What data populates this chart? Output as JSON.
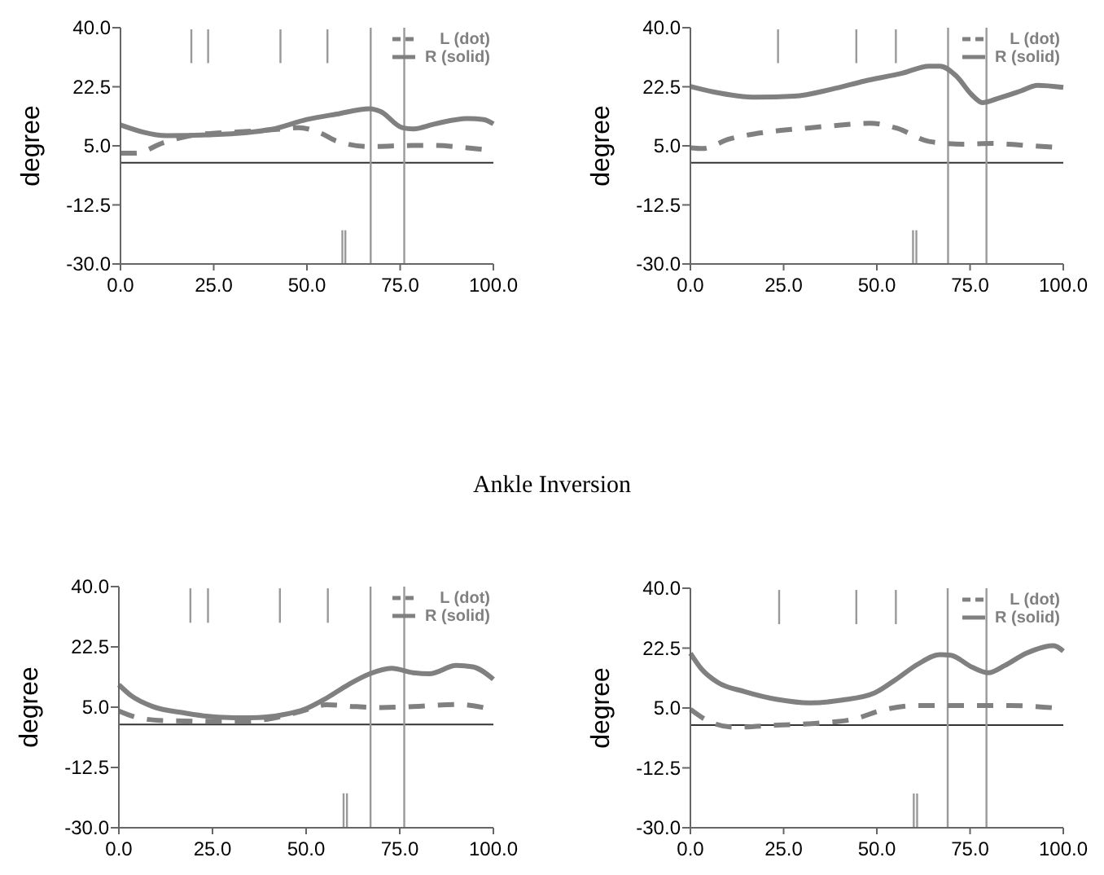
{
  "chart_data": [
    {
      "type": "line",
      "ylabel": "degree",
      "xlim": [
        0,
        100
      ],
      "xticks": [
        {
          "value": 0,
          "label": "0.0"
        },
        {
          "value": 25,
          "label": "25.0"
        },
        {
          "value": 50,
          "label": "50.0"
        },
        {
          "value": 75,
          "label": "75.0"
        },
        {
          "value": 100,
          "label": "100.0"
        }
      ],
      "ylim": [
        -30,
        40
      ],
      "yticks": [
        {
          "value": -30,
          "label": "-30.0"
        },
        {
          "value": -12.5,
          "label": "-12.5"
        },
        {
          "value": 5,
          "label": "5.0"
        },
        {
          "value": 22.5,
          "label": "22.5"
        },
        {
          "value": 40,
          "label": "40.0"
        }
      ],
      "legend": "top right",
      "ref_lines": [
        {
          "axis": "y",
          "value": 0,
          "color": "#333333"
        },
        {
          "axis": "x",
          "value": 67.1,
          "color": "#999999"
        },
        {
          "axis": "x",
          "value": 76.1,
          "color": "#999999"
        }
      ],
      "series": [
        {
          "name": "L (dot)",
          "color": "#808080",
          "line_style": "dashed",
          "x": [
            0,
            4.1,
            11.4,
            18.7,
            26,
            33.2,
            43.4,
            47.8,
            53.6,
            58,
            66.8,
            78.4,
            84.3,
            93,
            100
          ],
          "values": [
            2.8,
            2.8,
            5.9,
            8.0,
            8.8,
            9.2,
            10.0,
            10.4,
            8.8,
            6.4,
            4.8,
            5.1,
            5.1,
            4.4,
            3.6
          ]
        },
        {
          "name": "R (solid)",
          "color": "#808080",
          "line_style": "solid",
          "x": [
            0,
            12.5,
            24.9,
            40.5,
            50,
            58,
            66.8,
            69.7,
            75.5,
            78.4,
            84.3,
            93,
            97.4,
            100
          ],
          "values": [
            11.2,
            8.0,
            8.3,
            9.9,
            12.8,
            14.4,
            16.0,
            15.2,
            10.4,
            10.0,
            11.5,
            13.1,
            12.8,
            11.5
          ]
        },
        {
          "color": "#999999",
          "x": [
            19,
            19
          ],
          "values": [
            39.5,
            29.5
          ]
        },
        {
          "color": "#999999",
          "x": [
            23.5,
            23.5
          ],
          "values": [
            39.5,
            29.5
          ]
        },
        {
          "color": "#999999",
          "x": [
            42.9,
            42.9
          ],
          "values": [
            39.5,
            29.5
          ]
        },
        {
          "color": "#999999",
          "x": [
            55.5,
            55.5
          ],
          "values": [
            39.5,
            29.5
          ]
        },
        {
          "color": "#999999",
          "x": [
            59.5,
            59.5
          ],
          "values": [
            -30,
            -20
          ]
        },
        {
          "color": "#999999",
          "x": [
            60.3,
            60.3
          ],
          "values": [
            -30,
            -20
          ]
        }
      ]
    },
    {
      "type": "line",
      "ylabel": "degree",
      "xlim": [
        0,
        100
      ],
      "xticks": [
        {
          "value": 0,
          "label": "0.0"
        },
        {
          "value": 25,
          "label": "25.0"
        },
        {
          "value": 50,
          "label": "50.0"
        },
        {
          "value": 75,
          "label": "75.0"
        },
        {
          "value": 100,
          "label": "100.0"
        }
      ],
      "ylim": [
        -30,
        40
      ],
      "yticks": [
        {
          "value": -30,
          "label": "-30.0"
        },
        {
          "value": -12.5,
          "label": "-12.5"
        },
        {
          "value": 5,
          "label": "5.0"
        },
        {
          "value": 22.5,
          "label": "22.5"
        },
        {
          "value": 40,
          "label": "40.0"
        }
      ],
      "legend": "top right",
      "ref_lines": [
        {
          "axis": "y",
          "value": 0,
          "color": "#333333"
        },
        {
          "axis": "x",
          "value": 69.1,
          "color": "#999999"
        },
        {
          "axis": "x",
          "value": 79.4,
          "color": "#999999"
        }
      ],
      "series": [
        {
          "name": "L (dot)",
          "color": "#808080",
          "line_style": "dashed",
          "x": [
            0,
            3.2,
            10.4,
            20.6,
            30.7,
            40.9,
            48.1,
            55.4,
            64,
            72.8,
            81.4,
            90.1,
            100
          ],
          "values": [
            4.4,
            4.2,
            7.0,
            9.1,
            10.2,
            11.2,
            11.7,
            10.2,
            6.3,
            5.5,
            5.7,
            5.1,
            4.4
          ]
        },
        {
          "name": "R (solid)",
          "color": "#808080",
          "line_style": "solid",
          "x": [
            0,
            6.1,
            17.7,
            27.8,
            38,
            46.7,
            56.8,
            64,
            66.9,
            71.3,
            75.4,
            78.3,
            82.6,
            88.7,
            93,
            100
          ],
          "values": [
            22.6,
            21.0,
            19.4,
            19.7,
            21.8,
            24.2,
            26.5,
            28.6,
            28.6,
            25.7,
            20.2,
            17.8,
            19.1,
            21.3,
            22.9,
            22.3
          ]
        },
        {
          "color": "#999999",
          "x": [
            23.5,
            23.5
          ],
          "values": [
            39.5,
            29.5
          ]
        },
        {
          "color": "#999999",
          "x": [
            44.5,
            44.5
          ],
          "values": [
            39.5,
            29.5
          ]
        },
        {
          "color": "#999999",
          "x": [
            55.1,
            55.1
          ],
          "values": [
            39.5,
            29.5
          ]
        },
        {
          "color": "#999999",
          "x": [
            59.7,
            59.7
          ],
          "values": [
            -30,
            -20
          ]
        },
        {
          "color": "#999999",
          "x": [
            60.6,
            60.6
          ],
          "values": [
            -30,
            -20
          ]
        }
      ]
    },
    {
      "type": "line",
      "title": "Ankle Inversion",
      "ylabel": "degree",
      "xlim": [
        0,
        100
      ],
      "xticks": [
        {
          "value": 0,
          "label": "0.0"
        },
        {
          "value": 25,
          "label": "25.0"
        },
        {
          "value": 50,
          "label": "50.0"
        },
        {
          "value": 75,
          "label": "75.0"
        },
        {
          "value": 100,
          "label": "100.0"
        }
      ],
      "ylim": [
        -30,
        40
      ],
      "yticks": [
        {
          "value": -30,
          "label": "-30.0"
        },
        {
          "value": -12.5,
          "label": "-12.5"
        },
        {
          "value": 5,
          "label": "5.0"
        },
        {
          "value": 22.5,
          "label": "22.5"
        },
        {
          "value": 40,
          "label": "40.0"
        }
      ],
      "legend": "top right",
      "ref_lines": [
        {
          "axis": "y",
          "value": 0,
          "color": "#333333"
        },
        {
          "axis": "x",
          "value": 67.2,
          "color": "#999999"
        },
        {
          "axis": "x",
          "value": 76.2,
          "color": "#999999"
        }
      ],
      "series": [
        {
          "name": "L (dot)",
          "color": "#808080",
          "line_style": "dashed",
          "x": [
            0,
            4.6,
            11.9,
            26.4,
            33.6,
            43.8,
            49.6,
            55.4,
            62.6,
            69.9,
            78.6,
            90.1,
            100
          ],
          "values": [
            3.9,
            2.1,
            1.1,
            0.9,
            0.9,
            2.4,
            4.1,
            5.7,
            5.2,
            4.9,
            5.2,
            5.8,
            4.3
          ]
        },
        {
          "name": "R (solid)",
          "color": "#808080",
          "line_style": "solid",
          "x": [
            0,
            3.2,
            9.0,
            17.7,
            26.4,
            35.1,
            43.8,
            49.6,
            55.4,
            61.2,
            67,
            72.8,
            78.6,
            82.9,
            90.1,
            94.5,
            100
          ],
          "values": [
            11.5,
            8.4,
            5.2,
            3.3,
            2.1,
            1.9,
            2.8,
            4.4,
            7.6,
            11.5,
            14.7,
            16.3,
            15.0,
            14.7,
            17.1,
            16.7,
            13.1
          ]
        },
        {
          "color": "#999999",
          "x": [
            19.1,
            19.1
          ],
          "values": [
            39.5,
            29.5
          ]
        },
        {
          "color": "#999999",
          "x": [
            23.8,
            23.8
          ],
          "values": [
            39.5,
            29.5
          ]
        },
        {
          "color": "#999999",
          "x": [
            43,
            43
          ],
          "values": [
            39.5,
            29.5
          ]
        },
        {
          "color": "#999999",
          "x": [
            55.8,
            55.8
          ],
          "values": [
            39.5,
            29.5
          ]
        },
        {
          "color": "#999999",
          "x": [
            60,
            60
          ],
          "values": [
            -30,
            -20
          ]
        },
        {
          "color": "#999999",
          "x": [
            60.9,
            60.9
          ],
          "values": [
            -30,
            -20
          ]
        }
      ]
    },
    {
      "type": "line",
      "ylabel": "degree",
      "xlim": [
        0,
        100
      ],
      "xticks": [
        {
          "value": 0,
          "label": "0.0"
        },
        {
          "value": 25,
          "label": "25.0"
        },
        {
          "value": 50,
          "label": "50.0"
        },
        {
          "value": 75,
          "label": "75.0"
        },
        {
          "value": 100,
          "label": "100.0"
        }
      ],
      "ylim": [
        -30,
        40
      ],
      "yticks": [
        {
          "value": -30,
          "label": "-30.0"
        },
        {
          "value": -12.5,
          "label": "-12.5"
        },
        {
          "value": 5,
          "label": "5.0"
        },
        {
          "value": 22.5,
          "label": "22.5"
        },
        {
          "value": 40,
          "label": "40.0"
        }
      ],
      "legend": "top right",
      "ref_lines": [
        {
          "axis": "y",
          "value": 0,
          "color": "#333333"
        },
        {
          "axis": "x",
          "value": 69.0,
          "color": "#999999"
        },
        {
          "axis": "x",
          "value": 79.4,
          "color": "#999999"
        }
      ],
      "series": [
        {
          "name": "L (dot)",
          "color": "#808080",
          "line_style": "dashed",
          "x": [
            0,
            4.4,
            11.6,
            23.3,
            34.9,
            43.6,
            52.3,
            61,
            72.7,
            85.8,
            100
          ],
          "values": [
            4.6,
            1.4,
            -0.6,
            0,
            0.6,
            1.7,
            4.6,
            5.7,
            5.7,
            5.7,
            4.8
          ]
        },
        {
          "name": "R (solid)",
          "color": "#808080",
          "line_style": "solid",
          "x": [
            0,
            2.9,
            7.3,
            14.5,
            23.3,
            32,
            40.7,
            49.4,
            55.2,
            61,
            66.9,
            69.8,
            75.6,
            79.9,
            84.3,
            90.1,
            97.4,
            100
          ],
          "values": [
            21.0,
            16.5,
            12.5,
            9.8,
            7.5,
            6.5,
            7.3,
            9.4,
            13.4,
            17.8,
            20.6,
            20.4,
            16.9,
            15.3,
            17.4,
            21.0,
            23.2,
            21.6
          ]
        },
        {
          "color": "#999999",
          "x": [
            23.8,
            23.8
          ],
          "values": [
            39.5,
            29.5
          ]
        },
        {
          "color": "#999999",
          "x": [
            44.5,
            44.5
          ],
          "values": [
            39.5,
            29.5
          ]
        },
        {
          "color": "#999999",
          "x": [
            55.1,
            55.1
          ],
          "values": [
            39.5,
            29.5
          ]
        },
        {
          "color": "#999999",
          "x": [
            59.9,
            59.9
          ],
          "values": [
            -30,
            -20
          ]
        },
        {
          "color": "#999999",
          "x": [
            60.8,
            60.8
          ],
          "values": [
            -30,
            -20
          ]
        }
      ]
    }
  ]
}
